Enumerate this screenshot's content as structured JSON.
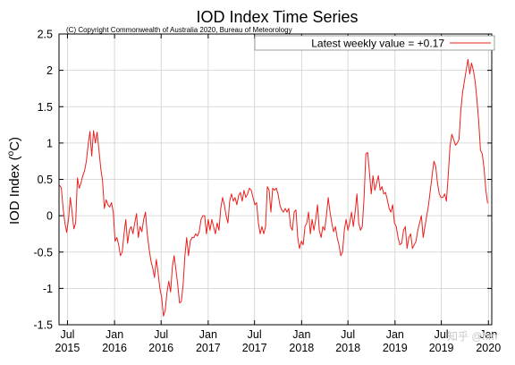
{
  "chart_data": {
    "type": "line",
    "title": "IOD Index Time Series",
    "subtitle": "(C) Copyright Commonwealth of Australia 2020, Bureau of Meteorology",
    "ylabel_main": "IOD Index (",
    "ylabel_sup": "o",
    "ylabel_unit": "C)",
    "xlabel": "",
    "ylim": [
      -1.5,
      2.5
    ],
    "yticks": [
      {
        "v": 2.5,
        "label": "2.5"
      },
      {
        "v": 2,
        "label": "2"
      },
      {
        "v": 1.5,
        "label": "1.5"
      },
      {
        "v": 1,
        "label": "1"
      },
      {
        "v": 0.5,
        "label": "0.5"
      },
      {
        "v": 0,
        "label": "0"
      },
      {
        "v": -0.5,
        "label": "-0.5"
      },
      {
        "v": -1,
        "label": "-1"
      },
      {
        "v": -1.5,
        "label": "-1.5"
      }
    ],
    "xlim": [
      "2015-05-29",
      "2020-01-14"
    ],
    "xticks": [
      {
        "date": "2015-07-01",
        "month": "Jul",
        "year": "2015"
      },
      {
        "date": "2016-01-01",
        "month": "Jan",
        "year": "2016"
      },
      {
        "date": "2016-07-01",
        "month": "Jul",
        "year": "2016"
      },
      {
        "date": "2017-01-01",
        "month": "Jan",
        "year": "2017"
      },
      {
        "date": "2017-07-01",
        "month": "Jul",
        "year": "2017"
      },
      {
        "date": "2018-01-01",
        "month": "Jan",
        "year": "2018"
      },
      {
        "date": "2018-07-01",
        "month": "Jul",
        "year": "2018"
      },
      {
        "date": "2019-01-01",
        "month": "Jan",
        "year": "2019"
      },
      {
        "date": "2019-07-01",
        "month": "Jul",
        "year": "2019"
      },
      {
        "date": "2020-01-01",
        "month": "Jan",
        "year": "2020"
      }
    ],
    "grid": true,
    "legend_position": "top-right",
    "series": [
      {
        "name": "Latest weekly value = +0.17",
        "color": "#e8211e",
        "points": [
          [
            "2015-05-31",
            0.42
          ],
          [
            "2015-06-07",
            0.38
          ],
          [
            "2015-06-14",
            0.1
          ],
          [
            "2015-06-21",
            -0.1
          ],
          [
            "2015-06-28",
            -0.23
          ],
          [
            "2015-07-05",
            -0.05
          ],
          [
            "2015-07-12",
            0.25
          ],
          [
            "2015-07-19",
            0.05
          ],
          [
            "2015-07-26",
            -0.18
          ],
          [
            "2015-08-02",
            -0.1
          ],
          [
            "2015-08-09",
            0.52
          ],
          [
            "2015-08-16",
            0.38
          ],
          [
            "2015-08-23",
            0.45
          ],
          [
            "2015-08-30",
            0.55
          ],
          [
            "2015-09-06",
            0.62
          ],
          [
            "2015-09-13",
            0.75
          ],
          [
            "2015-09-20",
            0.98
          ],
          [
            "2015-09-27",
            1.16
          ],
          [
            "2015-10-04",
            0.82
          ],
          [
            "2015-10-11",
            1.17
          ],
          [
            "2015-10-18",
            1.0
          ],
          [
            "2015-10-25",
            1.15
          ],
          [
            "2015-11-01",
            0.9
          ],
          [
            "2015-11-08",
            0.65
          ],
          [
            "2015-11-15",
            0.48
          ],
          [
            "2015-11-22",
            0.1
          ],
          [
            "2015-11-29",
            0.22
          ],
          [
            "2015-12-06",
            0.15
          ],
          [
            "2015-12-13",
            0.12
          ],
          [
            "2015-12-20",
            0.18
          ],
          [
            "2015-12-27",
            0.05
          ],
          [
            "2016-01-03",
            -0.35
          ],
          [
            "2016-01-10",
            -0.3
          ],
          [
            "2016-01-17",
            -0.4
          ],
          [
            "2016-01-24",
            -0.55
          ],
          [
            "2016-01-31",
            -0.5
          ],
          [
            "2016-02-07",
            -0.25
          ],
          [
            "2016-02-14",
            -0.05
          ],
          [
            "2016-02-21",
            -0.38
          ],
          [
            "2016-02-28",
            -0.2
          ],
          [
            "2016-03-06",
            -0.15
          ],
          [
            "2016-03-13",
            -0.25
          ],
          [
            "2016-03-20",
            -0.1
          ],
          [
            "2016-03-27",
            0.03
          ],
          [
            "2016-04-03",
            -0.3
          ],
          [
            "2016-04-10",
            -0.15
          ],
          [
            "2016-04-17",
            -0.22
          ],
          [
            "2016-04-24",
            -0.05
          ],
          [
            "2016-05-01",
            0.05
          ],
          [
            "2016-05-08",
            -0.25
          ],
          [
            "2016-05-15",
            -0.45
          ],
          [
            "2016-05-22",
            -0.62
          ],
          [
            "2016-05-29",
            -0.72
          ],
          [
            "2016-06-05",
            -0.85
          ],
          [
            "2016-06-12",
            -0.6
          ],
          [
            "2016-06-19",
            -0.78
          ],
          [
            "2016-06-26",
            -1.0
          ],
          [
            "2016-07-03",
            -1.12
          ],
          [
            "2016-07-10",
            -1.38
          ],
          [
            "2016-07-17",
            -1.3
          ],
          [
            "2016-07-24",
            -1.05
          ],
          [
            "2016-07-31",
            -0.9
          ],
          [
            "2016-08-07",
            -1.05
          ],
          [
            "2016-08-14",
            -0.7
          ],
          [
            "2016-08-21",
            -0.55
          ],
          [
            "2016-08-28",
            -0.75
          ],
          [
            "2016-09-04",
            -0.95
          ],
          [
            "2016-09-11",
            -1.2
          ],
          [
            "2016-09-18",
            -1.18
          ],
          [
            "2016-09-25",
            -0.95
          ],
          [
            "2016-10-02",
            -0.55
          ],
          [
            "2016-10-09",
            -0.3
          ],
          [
            "2016-10-16",
            -0.55
          ],
          [
            "2016-10-23",
            -0.35
          ],
          [
            "2016-10-30",
            -0.3
          ],
          [
            "2016-11-06",
            -0.3
          ],
          [
            "2016-11-13",
            -0.25
          ],
          [
            "2016-11-20",
            -0.28
          ],
          [
            "2016-11-27",
            -0.22
          ],
          [
            "2016-12-04",
            -0.05
          ],
          [
            "2016-12-11",
            0.0
          ],
          [
            "2016-12-18",
            0.0
          ],
          [
            "2016-12-25",
            -0.25
          ],
          [
            "2017-01-01",
            -0.05
          ],
          [
            "2017-01-08",
            -0.2
          ],
          [
            "2017-01-15",
            -0.05
          ],
          [
            "2017-01-22",
            -0.15
          ],
          [
            "2017-01-29",
            -0.25
          ],
          [
            "2017-02-05",
            -0.1
          ],
          [
            "2017-02-12",
            -0.2
          ],
          [
            "2017-02-19",
            0.1
          ],
          [
            "2017-02-26",
            0.25
          ],
          [
            "2017-03-05",
            0.15
          ],
          [
            "2017-03-12",
            0.0
          ],
          [
            "2017-03-19",
            -0.1
          ],
          [
            "2017-03-26",
            0.2
          ],
          [
            "2017-04-02",
            0.3
          ],
          [
            "2017-04-09",
            0.2
          ],
          [
            "2017-04-16",
            0.25
          ],
          [
            "2017-04-23",
            0.15
          ],
          [
            "2017-04-30",
            0.28
          ],
          [
            "2017-05-07",
            0.32
          ],
          [
            "2017-05-14",
            0.2
          ],
          [
            "2017-05-21",
            0.35
          ],
          [
            "2017-05-28",
            0.25
          ],
          [
            "2017-06-04",
            0.3
          ],
          [
            "2017-06-11",
            0.38
          ],
          [
            "2017-06-18",
            0.35
          ],
          [
            "2017-06-25",
            0.25
          ],
          [
            "2017-07-02",
            0.15
          ],
          [
            "2017-07-09",
            0.18
          ],
          [
            "2017-07-16",
            -0.1
          ],
          [
            "2017-07-23",
            -0.25
          ],
          [
            "2017-07-30",
            -0.15
          ],
          [
            "2017-08-06",
            -0.25
          ],
          [
            "2017-08-13",
            -0.15
          ],
          [
            "2017-08-20",
            0.4
          ],
          [
            "2017-08-27",
            0.35
          ],
          [
            "2017-09-03",
            0.05
          ],
          [
            "2017-09-10",
            0.38
          ],
          [
            "2017-09-17",
            0.35
          ],
          [
            "2017-09-24",
            0.38
          ],
          [
            "2017-10-01",
            0.3
          ],
          [
            "2017-10-08",
            0.15
          ],
          [
            "2017-10-15",
            0.08
          ],
          [
            "2017-10-22",
            0.05
          ],
          [
            "2017-10-29",
            0.1
          ],
          [
            "2017-11-05",
            0.05
          ],
          [
            "2017-11-12",
            0.1
          ],
          [
            "2017-11-19",
            -0.15
          ],
          [
            "2017-11-26",
            -0.2
          ],
          [
            "2017-12-03",
            0.05
          ],
          [
            "2017-12-10",
            0.08
          ],
          [
            "2017-12-17",
            -0.3
          ],
          [
            "2017-12-24",
            -0.45
          ],
          [
            "2017-12-31",
            -0.35
          ],
          [
            "2018-01-07",
            -0.4
          ],
          [
            "2018-01-14",
            -0.15
          ],
          [
            "2018-01-21",
            -0.1
          ],
          [
            "2018-01-28",
            0.05
          ],
          [
            "2018-02-04",
            -0.25
          ],
          [
            "2018-02-11",
            -0.05
          ],
          [
            "2018-02-18",
            -0.2
          ],
          [
            "2018-02-25",
            -0.05
          ],
          [
            "2018-03-04",
            0.15
          ],
          [
            "2018-03-11",
            -0.2
          ],
          [
            "2018-03-18",
            -0.3
          ],
          [
            "2018-03-25",
            -0.15
          ],
          [
            "2018-04-01",
            -0.2
          ],
          [
            "2018-04-08",
            0.0
          ],
          [
            "2018-04-15",
            0.25
          ],
          [
            "2018-04-22",
            0.05
          ],
          [
            "2018-04-29",
            -0.1
          ],
          [
            "2018-05-06",
            -0.22
          ],
          [
            "2018-05-13",
            -0.15
          ],
          [
            "2018-05-20",
            -0.3
          ],
          [
            "2018-05-27",
            -0.4
          ],
          [
            "2018-06-03",
            -0.55
          ],
          [
            "2018-06-10",
            -0.5
          ],
          [
            "2018-06-17",
            -0.2
          ],
          [
            "2018-06-24",
            -0.05
          ],
          [
            "2018-07-01",
            -0.2
          ],
          [
            "2018-07-08",
            -0.1
          ],
          [
            "2018-07-15",
            0.05
          ],
          [
            "2018-07-22",
            -0.15
          ],
          [
            "2018-07-29",
            0.05
          ],
          [
            "2018-08-05",
            0.3
          ],
          [
            "2018-08-12",
            -0.1
          ],
          [
            "2018-08-19",
            -0.2
          ],
          [
            "2018-08-26",
            -0.15
          ],
          [
            "2018-09-02",
            0.25
          ],
          [
            "2018-09-09",
            0.85
          ],
          [
            "2018-09-16",
            0.87
          ],
          [
            "2018-09-23",
            0.6
          ],
          [
            "2018-09-30",
            0.3
          ],
          [
            "2018-10-07",
            0.55
          ],
          [
            "2018-10-14",
            0.35
          ],
          [
            "2018-10-21",
            0.45
          ],
          [
            "2018-10-28",
            0.55
          ],
          [
            "2018-11-04",
            0.35
          ],
          [
            "2018-11-11",
            0.4
          ],
          [
            "2018-11-18",
            0.3
          ],
          [
            "2018-11-25",
            0.32
          ],
          [
            "2018-12-02",
            0.22
          ],
          [
            "2018-12-09",
            0.1
          ],
          [
            "2018-12-16",
            0.05
          ],
          [
            "2018-12-23",
            0.15
          ],
          [
            "2018-12-30",
            -0.1
          ],
          [
            "2019-01-06",
            -0.15
          ],
          [
            "2019-01-13",
            -0.3
          ],
          [
            "2019-01-20",
            -0.4
          ],
          [
            "2019-01-27",
            -0.38
          ],
          [
            "2019-02-03",
            -0.2
          ],
          [
            "2019-02-10",
            -0.15
          ],
          [
            "2019-02-17",
            -0.45
          ],
          [
            "2019-02-24",
            -0.3
          ],
          [
            "2019-03-03",
            -0.25
          ],
          [
            "2019-03-10",
            -0.45
          ],
          [
            "2019-03-17",
            -0.4
          ],
          [
            "2019-03-24",
            -0.35
          ],
          [
            "2019-03-31",
            -0.2
          ],
          [
            "2019-04-07",
            -0.1
          ],
          [
            "2019-04-14",
            0.0
          ],
          [
            "2019-04-21",
            -0.3
          ],
          [
            "2019-04-28",
            -0.15
          ],
          [
            "2019-05-05",
            0.0
          ],
          [
            "2019-05-12",
            0.15
          ],
          [
            "2019-05-19",
            0.35
          ],
          [
            "2019-05-26",
            0.55
          ],
          [
            "2019-06-02",
            0.75
          ],
          [
            "2019-06-09",
            0.68
          ],
          [
            "2019-06-16",
            0.45
          ],
          [
            "2019-06-23",
            0.3
          ],
          [
            "2019-06-30",
            0.25
          ],
          [
            "2019-07-07",
            0.25
          ],
          [
            "2019-07-14",
            0.3
          ],
          [
            "2019-07-21",
            0.2
          ],
          [
            "2019-07-28",
            0.55
          ],
          [
            "2019-08-04",
            0.95
          ],
          [
            "2019-08-11",
            1.12
          ],
          [
            "2019-08-18",
            1.05
          ],
          [
            "2019-08-25",
            0.97
          ],
          [
            "2019-09-01",
            1.0
          ],
          [
            "2019-09-08",
            1.05
          ],
          [
            "2019-09-15",
            1.45
          ],
          [
            "2019-09-22",
            1.7
          ],
          [
            "2019-09-29",
            1.85
          ],
          [
            "2019-10-06",
            2.0
          ],
          [
            "2019-10-13",
            2.15
          ],
          [
            "2019-10-20",
            1.95
          ],
          [
            "2019-10-27",
            2.1
          ],
          [
            "2019-11-03",
            2.0
          ],
          [
            "2019-11-10",
            1.85
          ],
          [
            "2019-11-17",
            1.6
          ],
          [
            "2019-11-24",
            1.3
          ],
          [
            "2019-12-01",
            0.9
          ],
          [
            "2019-12-08",
            0.85
          ],
          [
            "2019-12-15",
            0.65
          ],
          [
            "2019-12-22",
            0.35
          ],
          [
            "2019-12-29",
            0.17
          ]
        ]
      }
    ]
  },
  "watermark": "知乎 @hm"
}
